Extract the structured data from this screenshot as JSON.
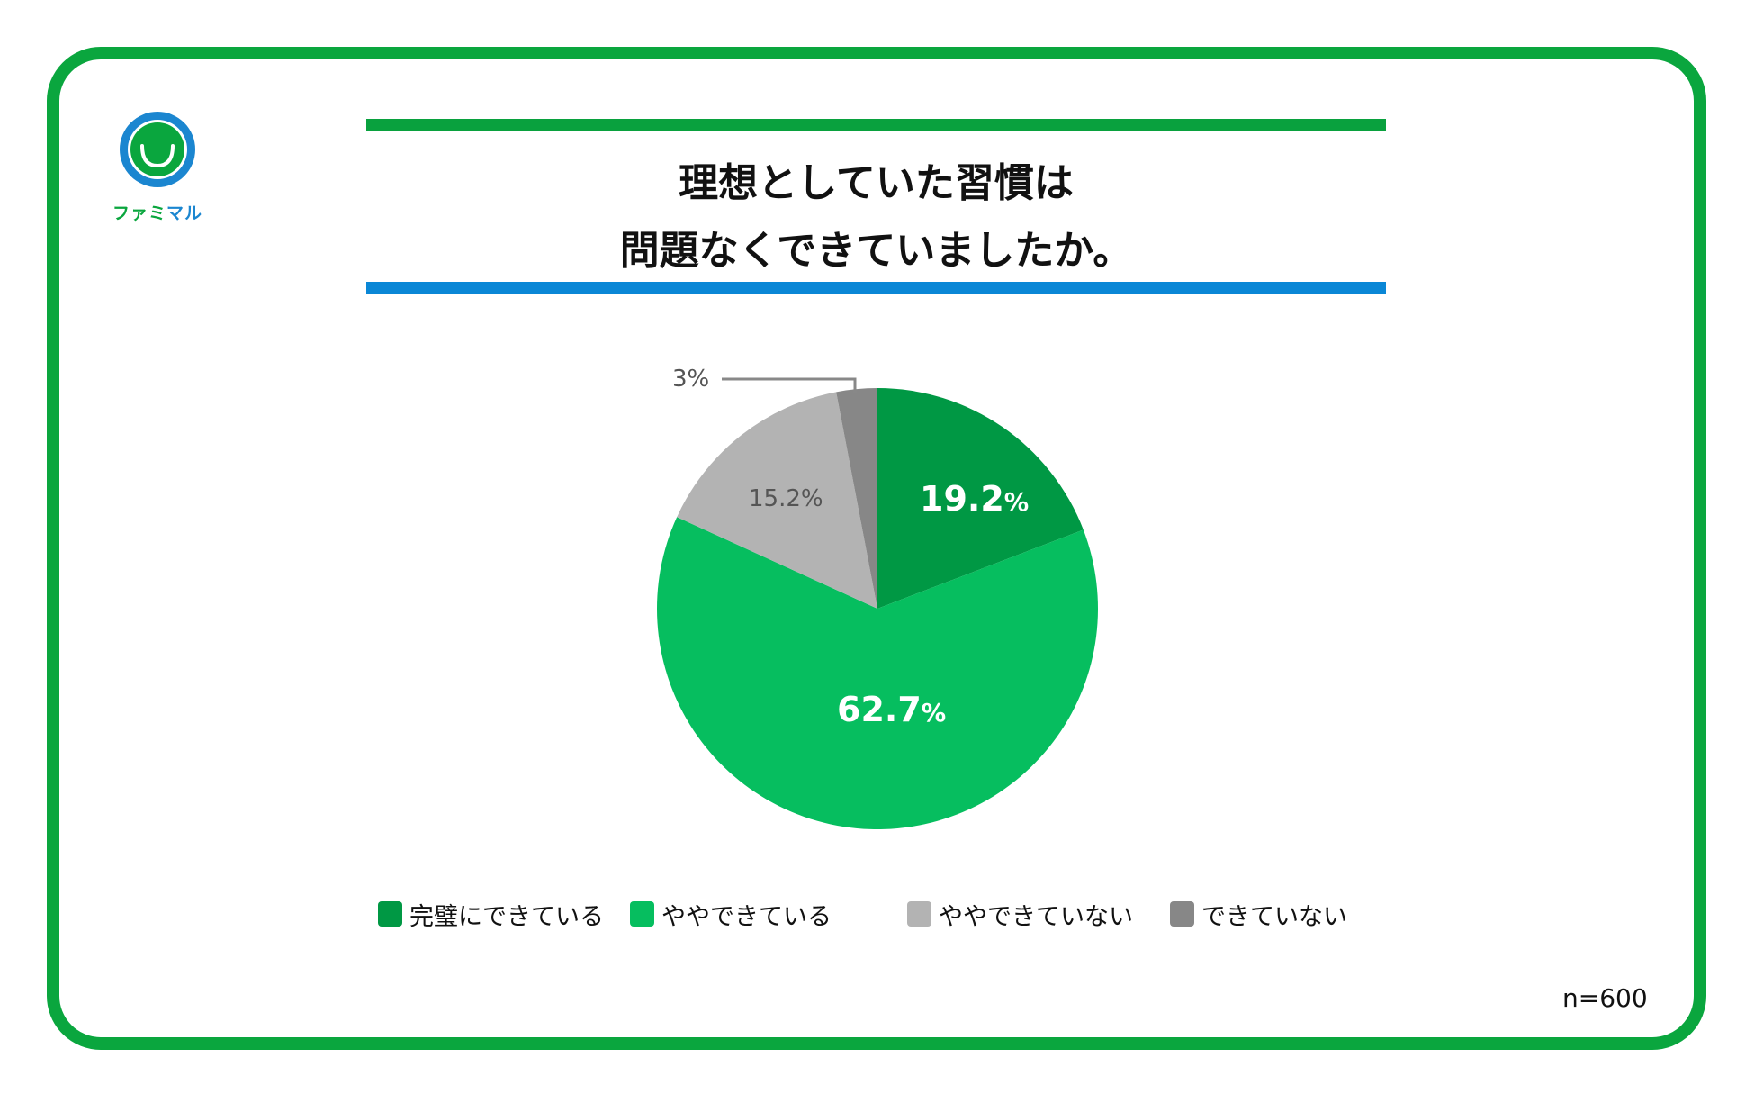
{
  "logo": {
    "text_green": "ファミ",
    "text_blue": "マル",
    "colors": {
      "ring": "#1B86D0",
      "face": "#0AA63E",
      "smile": "#ffffff"
    }
  },
  "title": {
    "line1": "理想としていた習慣は",
    "line2": "問題なくできていましたか。"
  },
  "sample": "n=600",
  "colors": {
    "frame": "#0AA63E",
    "bar_top": "#09A13E",
    "bar_bottom": "#0A87D6"
  },
  "labels": {
    "s0_num": "19.2",
    "s0_pct": "%",
    "s1_num": "62.7",
    "s1_pct": "%",
    "s2": "15.2%",
    "s3": "3%"
  },
  "legend": [
    {
      "label": "完璧にできている",
      "color": "#009844"
    },
    {
      "label": "ややできている",
      "color": "#06BE5F"
    },
    {
      "label": "ややできていない",
      "color": "#B3B3B3"
    },
    {
      "label": "できていない",
      "color": "#878787"
    }
  ],
  "chart_data": {
    "type": "pie",
    "title": "理想としていた習慣は問題なくできていましたか。",
    "categories": [
      "完璧にできている",
      "ややできている",
      "ややできていない",
      "できていない"
    ],
    "values": [
      19.2,
      62.7,
      15.2,
      3
    ],
    "colors": [
      "#009844",
      "#06BE5F",
      "#B3B3B3",
      "#878787"
    ],
    "start_angle": "12 o'clock",
    "direction": "clockwise",
    "legend_position": "bottom",
    "note": "n=600"
  }
}
